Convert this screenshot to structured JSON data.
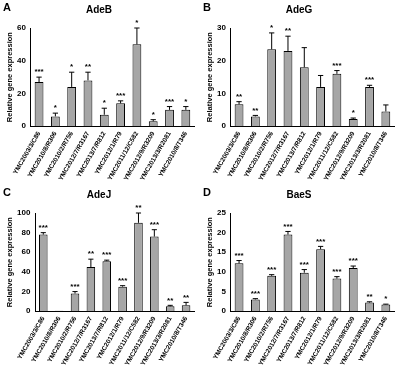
{
  "chart_data": [
    {
      "type": "bar",
      "title": "AdeB",
      "annotations": [
        "A"
      ],
      "y_label": "Relative gene expression",
      "categories": [
        "YMC2003/3/C86",
        "YMC2010/8/R306",
        "YMC2010/2/R756",
        "YMC2012/7/R3167",
        "YMC2013/7/R812",
        "YMC2012/1/R79",
        "YMC2011/12/C582",
        "YMC2012/9/R3209",
        "YMC2013/3/R2081",
        "YMC2010/8/T346"
      ],
      "values": [
        27,
        6,
        24,
        28,
        7,
        14,
        50,
        3,
        10,
        10
      ],
      "errors": [
        3,
        2,
        9,
        5,
        4,
        1.5,
        10,
        1,
        2,
        2
      ],
      "significance": [
        "***",
        "*",
        "*",
        "**",
        "*",
        "***",
        "*",
        "*",
        "***",
        "*"
      ],
      "color": "#a6a6a6",
      "ylim": [
        0,
        60
      ],
      "yticks": [
        0,
        20,
        40,
        60
      ],
      "grid": false
    },
    {
      "type": "bar",
      "title": "AdeG",
      "annotations": [
        "B"
      ],
      "y_label": "Relative gene expression",
      "categories": [
        "YMC2003/3/C86",
        "YMC2010/8/R306",
        "YMC2010/2/R756",
        "YMC2012/7/R3167",
        "YMC2013/7/R812",
        "YMC2012/1/R79",
        "YMC2011/12/C582",
        "YMC2012/9/R3209",
        "YMC2013/3/R2081",
        "YMC2010/8/T346"
      ],
      "values": [
        6.7,
        3,
        23.5,
        23,
        18,
        12,
        16,
        2.2,
        12,
        4.5
      ],
      "errors": [
        0.8,
        0.3,
        5,
        4.5,
        6,
        3.5,
        1,
        0.3,
        0.5,
        2
      ],
      "significance": [
        "**",
        "**",
        "*",
        "**",
        null,
        null,
        "***",
        "*",
        "***",
        null
      ],
      "color": "#a6a6a6",
      "ylim": [
        0,
        30
      ],
      "yticks": [
        0,
        10,
        20,
        30
      ],
      "grid": false
    },
    {
      "type": "bar",
      "title": "AdeJ",
      "annotations": [
        "C"
      ],
      "y_label": "Relative gene expression",
      "categories": [
        "YMC2003/3/C86",
        "YMC2010/8/R306",
        "YMC2010/2/R756",
        "YMC2012/7/R3167",
        "YMC2013/7/R812",
        "YMC2012/1/R79",
        "YMC2011/12/C582",
        "YMC2012/9/R3209",
        "YMC2013/3/R2081",
        "YMC2010/8/T346"
      ],
      "values": [
        78,
        0.5,
        18,
        45,
        51,
        25,
        90,
        76,
        5,
        6
      ],
      "errors": [
        2,
        0,
        2,
        8,
        1,
        1,
        10,
        7,
        1,
        3
      ],
      "significance": [
        "***",
        null,
        "***",
        "**",
        "***",
        "***",
        "**",
        "***",
        "**",
        "**"
      ],
      "color": "#a6a6a6",
      "ylim": [
        0,
        100
      ],
      "yticks": [
        0,
        20,
        40,
        60,
        80,
        100
      ],
      "grid": false
    },
    {
      "type": "bar",
      "title": "BaeS",
      "annotations": [
        "D"
      ],
      "y_label": "Relative gene expression",
      "categories": [
        "YMC2003/3/C86",
        "YMC2010/8/R306",
        "YMC2010/2/R756",
        "YMC2012/7/R3167",
        "YMC2013/7/R812",
        "YMC2012/1/R79",
        "YMC2011/12/C582",
        "YMC2012/9/R3209",
        "YMC2013/3/R2081",
        "YMC2010/8/T346"
      ],
      "values": [
        12.2,
        3,
        9,
        19.5,
        9.8,
        15.8,
        8.3,
        11,
        2.2,
        1.7
      ],
      "errors": [
        0.7,
        0.2,
        0.3,
        0.8,
        0.8,
        0.7,
        0.5,
        0.5,
        0.2,
        0.1
      ],
      "significance": [
        "***",
        "***",
        "***",
        "***",
        "***",
        "***",
        "***",
        "***",
        "**",
        "*"
      ],
      "color": "#a6a6a6",
      "ylim": [
        0,
        25
      ],
      "yticks": [
        0,
        5,
        10,
        15,
        20,
        25
      ],
      "grid": false
    }
  ]
}
